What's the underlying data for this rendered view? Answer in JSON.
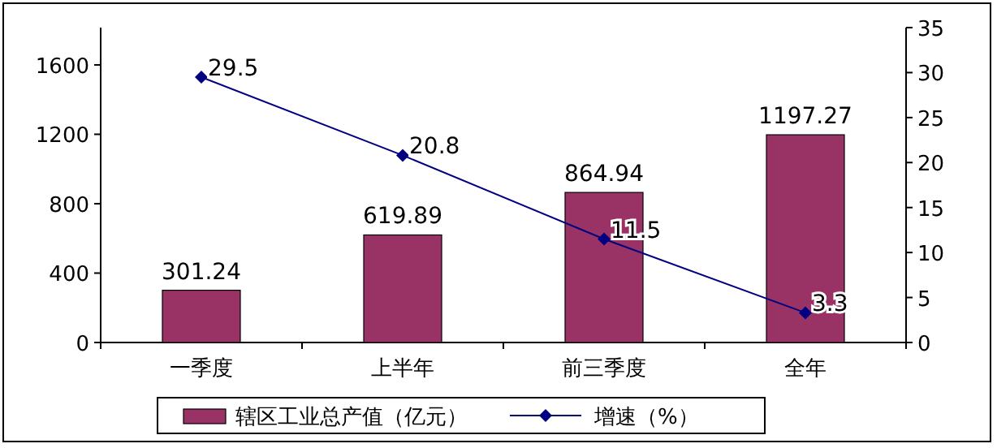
{
  "chart_data": {
    "type": "bar",
    "categories": [
      "一季度",
      "上半年",
      "前三季度",
      "全年"
    ],
    "series": [
      {
        "name": "辖区工业总产值（亿元）",
        "color": "#993366",
        "values": [
          301.24,
          619.89,
          864.94,
          1197.27
        ]
      },
      {
        "name": "增速（%）",
        "type": "line",
        "axis": "y2",
        "color": "#000080",
        "marker": "diamond",
        "values": [
          29.5,
          20.8,
          11.5,
          3.3
        ]
      }
    ],
    "ylim": [
      0,
      1815
    ],
    "yticks": [
      0,
      400,
      800,
      1200,
      1600
    ],
    "y2lim": [
      0,
      35
    ],
    "y2ticks": [
      0,
      5,
      10,
      15,
      20,
      25,
      30,
      35
    ],
    "data_labels": true,
    "legend": "bottom",
    "grid": false
  }
}
